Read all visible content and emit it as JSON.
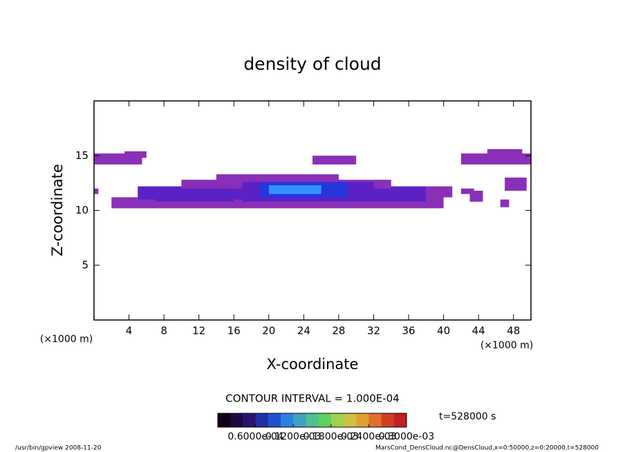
{
  "chart_data": {
    "type": "heatmap",
    "title": "density of cloud",
    "xlabel": "X-coordinate",
    "ylabel": "Z-coordinate",
    "xunit": "(×1000 m)",
    "contour_interval": "CONTOUR INTERVAL = 1.000E-04",
    "time": "t=528000 s",
    "footer_left": "/usr/bin/gpview  2008-11-20",
    "footer_right": "MarsCond_DensCloud.nc@DensCloud,x=0:50000,z=0:20000,t=528000",
    "xlim": [
      0,
      50
    ],
    "ylim": [
      0,
      20
    ],
    "xticks": [
      4,
      8,
      12,
      16,
      20,
      24,
      28,
      32,
      36,
      40,
      44,
      48
    ],
    "yticks": [
      5,
      10,
      15
    ],
    "levels": [
      0,
      3e-05,
      6e-05,
      0.0001
    ],
    "level_colors": [
      "#8a2fb8",
      "#5a22c4",
      "#2636dc",
      "#3492ff"
    ],
    "cells": [
      [
        0,
        5.5,
        14.2,
        15.2,
        2e-05
      ],
      [
        3.5,
        6,
        14.8,
        15.4,
        2e-05
      ],
      [
        42,
        50,
        14.2,
        15.2,
        2e-05
      ],
      [
        45,
        49,
        15,
        15.6,
        2e-05
      ],
      [
        25,
        30,
        14.2,
        15,
        2e-05
      ],
      [
        2,
        40,
        10.2,
        11.2,
        2e-05
      ],
      [
        5,
        38,
        11,
        12.2,
        3e-05
      ],
      [
        10,
        34,
        12,
        12.8,
        2e-05
      ],
      [
        14,
        28,
        12.6,
        13.3,
        2e-05
      ],
      [
        38,
        41,
        11.2,
        12.2,
        2e-05
      ],
      [
        7,
        16,
        10.8,
        12,
        5e-05
      ],
      [
        17,
        32,
        10.8,
        12.6,
        5e-05
      ],
      [
        32,
        38,
        10.8,
        11.8,
        5e-05
      ],
      [
        19,
        29,
        11.2,
        12.6,
        8e-05
      ],
      [
        20,
        26,
        11.5,
        12.3,
        0.00011
      ],
      [
        42,
        43.5,
        11.5,
        12,
        2e-05
      ],
      [
        43,
        44.5,
        10.8,
        11.8,
        2e-05
      ],
      [
        47,
        49.5,
        11.8,
        13,
        2e-05
      ],
      [
        46.5,
        47.5,
        10.3,
        11,
        2e-05
      ],
      [
        0,
        0.5,
        11.5,
        12,
        2e-05
      ]
    ],
    "clim": [
      0,
      0.0003
    ],
    "cbar_colors": [
      "#100018",
      "#200840",
      "#281470",
      "#2030a0",
      "#2050d0",
      "#3080e0",
      "#40a0c0",
      "#50c090",
      "#60d060",
      "#a0d050",
      "#d0c040",
      "#e0a030",
      "#e07030",
      "#d04020",
      "#c02020"
    ],
    "cbar_ticks": [
      {
        "value": 6e-05,
        "label": "0.6000e-04"
      },
      {
        "value": 0.00012,
        "label": "0.1200e-03"
      },
      {
        "value": 0.00018,
        "label": "0.1800e-03"
      },
      {
        "value": 0.00024,
        "label": "0.2400e-03"
      },
      {
        "value": 0.0003,
        "label": "0.3000e-03"
      }
    ]
  }
}
